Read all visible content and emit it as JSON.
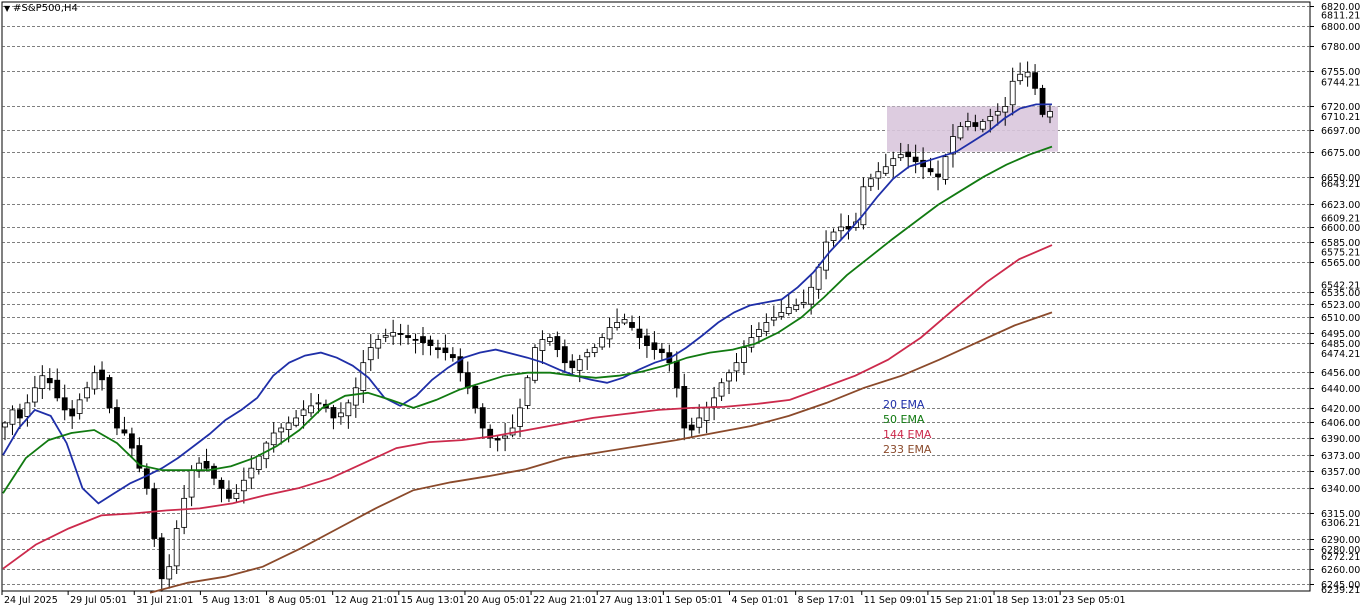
{
  "window": {
    "title": "#S&P500,H4"
  },
  "chart_data": {
    "type": "line",
    "subtype": "candlestick",
    "title": "#S&P500,H4",
    "ylim": [
      6235,
      6825
    ],
    "y_ticks": [
      6245,
      6260,
      6280,
      6290,
      6315,
      6340,
      6357,
      6373,
      6390,
      6406,
      6420,
      6440,
      6456,
      6485,
      6495,
      6510,
      6523,
      6535,
      6565,
      6585,
      6600,
      6623,
      6650,
      6675,
      6697,
      6720,
      6755,
      6780,
      6800,
      6820
    ],
    "y_side_labels": [
      "6239.21",
      "6272.21",
      "6306.21",
      "6474.21",
      "6542.21",
      "6575.21",
      "6609.21",
      "6643.21",
      "6710.21",
      "6744.21",
      "6811.21"
    ],
    "x_labels": [
      "24 Jul 2025",
      "29 Jul 05:01",
      "31 Jul 21:01",
      "5 Aug 13:01",
      "8 Aug 05:01",
      "12 Aug 21:01",
      "15 Aug 13:01",
      "20 Aug 05:01",
      "22 Aug 21:01",
      "27 Aug 13:01",
      "1 Sep 05:01",
      "4 Sep 01:01",
      "8 Sep 17:01",
      "11 Sep 09:01",
      "15 Sep 21:01",
      "18 Sep 13:01",
      "23 Sep 05:01"
    ],
    "grid": true,
    "legend_position": "center-right",
    "zone": {
      "from": 6675,
      "to": 6720,
      "color": "#d9c6dd"
    },
    "close": [
      6405,
      6418,
      6410,
      6425,
      6440,
      6452,
      6445,
      6430,
      6418,
      6412,
      6428,
      6440,
      6455,
      6448,
      6420,
      6400,
      6395,
      6380,
      6360,
      6340,
      6290,
      6250,
      6262,
      6300,
      6330,
      6358,
      6365,
      6360,
      6350,
      6340,
      6330,
      6335,
      6348,
      6360,
      6372,
      6385,
      6395,
      6400,
      6405,
      6410,
      6418,
      6422,
      6425,
      6420,
      6410,
      6415,
      6425,
      6440,
      6465,
      6480,
      6488,
      6492,
      6495,
      6493,
      6490,
      6488,
      6485,
      6482,
      6478,
      6475,
      6470,
      6455,
      6440,
      6420,
      6400,
      6390,
      6388,
      6392,
      6400,
      6420,
      6450,
      6480,
      6488,
      6490,
      6478,
      6465,
      6460,
      6468,
      6475,
      6480,
      6490,
      6500,
      6505,
      6508,
      6500,
      6490,
      6482,
      6478,
      6475,
      6465,
      6440,
      6400,
      6398,
      6410,
      6420,
      6430,
      6445,
      6455,
      6465,
      6480,
      6490,
      6498,
      6505,
      6510,
      6515,
      6520,
      6522,
      6525,
      6540,
      6560,
      6585,
      6595,
      6600,
      6598,
      6605,
      6640,
      6648,
      6655,
      6660,
      6668,
      6672,
      6670,
      6665,
      6660,
      6655,
      6650,
      6670,
      6690,
      6700,
      6705,
      6700,
      6705,
      6710,
      6715,
      6720,
      6745,
      6752,
      6754,
      6738,
      6712,
      6715
    ],
    "series": [
      {
        "name": "20 EMA",
        "color": "#1f2fa8",
        "values": [
          6373,
          6400,
          6418,
          6412,
          6385,
          6340,
          6325,
          6335,
          6345,
          6352,
          6360,
          6370,
          6382,
          6394,
          6408,
          6418,
          6430,
          6452,
          6465,
          6472,
          6475,
          6470,
          6462,
          6450,
          6430,
          6422,
          6432,
          6448,
          6460,
          6470,
          6475,
          6478,
          6474,
          6470,
          6465,
          6458,
          6452,
          6448,
          6445,
          6450,
          6458,
          6465,
          6470,
          6480,
          6492,
          6505,
          6515,
          6522,
          6525,
          6528,
          6540,
          6555,
          6575,
          6592,
          6610,
          6630,
          6648,
          6660,
          6665,
          6670,
          6675,
          6685,
          6695,
          6708,
          6718,
          6722,
          6722
        ]
      },
      {
        "name": "50 EMA",
        "color": "#117a11",
        "values": [
          6335,
          6370,
          6388,
          6395,
          6398,
          6385,
          6363,
          6358,
          6358,
          6358,
          6362,
          6370,
          6382,
          6398,
          6420,
          6432,
          6435,
          6428,
          6420,
          6428,
          6438,
          6445,
          6452,
          6455,
          6455,
          6452,
          6450,
          6452,
          6456,
          6462,
          6470,
          6475,
          6478,
          6484,
          6495,
          6510,
          6530,
          6552,
          6570,
          6588,
          6605,
          6622,
          6636,
          6650,
          6662,
          6672,
          6680
        ]
      },
      {
        "name": "144 EMA",
        "color": "#cc2a4c",
        "values": [
          6260,
          6284,
          6300,
          6313,
          6315,
          6318,
          6320,
          6325,
          6333,
          6340,
          6350,
          6365,
          6380,
          6386,
          6388,
          6392,
          6398,
          6404,
          6410,
          6414,
          6418,
          6420,
          6421,
          6424,
          6428,
          6440,
          6452,
          6468,
          6490,
          6518,
          6545,
          6568,
          6582
        ]
      },
      {
        "name": "233 EMA",
        "color": "#8b4a2b",
        "values": [
          6236,
          6246,
          6252,
          6262,
          6280,
          6300,
          6320,
          6338,
          6346,
          6352,
          6359,
          6370,
          6376,
          6382,
          6388,
          6395,
          6402,
          6412,
          6425,
          6440,
          6452,
          6468,
          6485,
          6502,
          6515
        ]
      }
    ]
  }
}
